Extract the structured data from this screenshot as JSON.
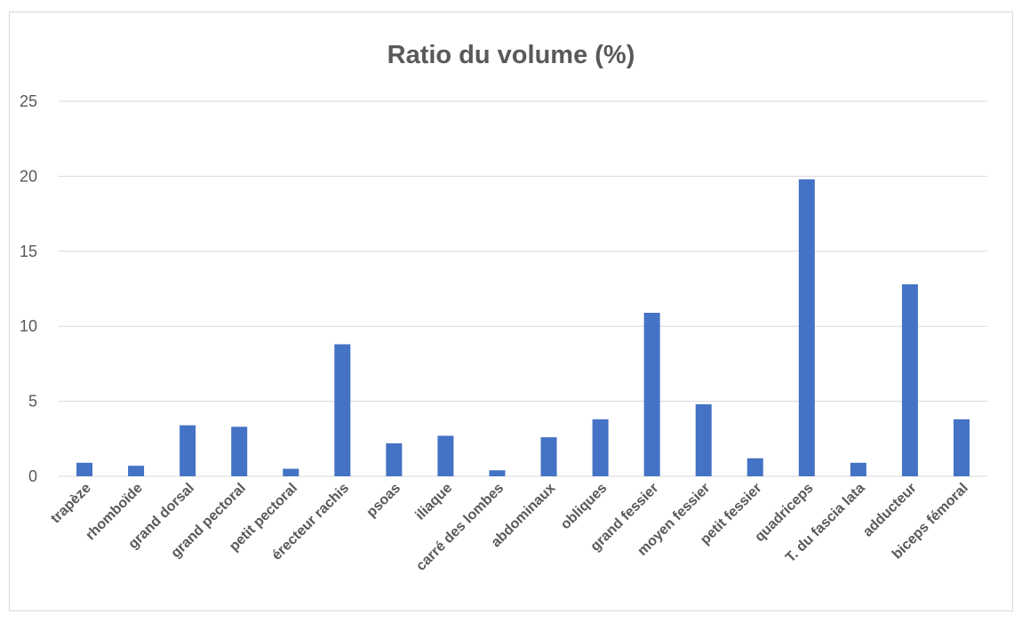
{
  "chart_data": {
    "type": "bar",
    "title": "Ratio du volume (%)",
    "xlabel": "",
    "ylabel": "",
    "ylim": [
      0,
      25
    ],
    "yticks": [
      0,
      5,
      10,
      15,
      20,
      25
    ],
    "grid": true,
    "legend": "none",
    "bar_color": "#4472C4",
    "categories": [
      "trapèze",
      "rhomboïde",
      "grand dorsal",
      "grand pectoral",
      "petit pectoral",
      "érecteur rachis",
      "psoas",
      "iliaque",
      "carré des lombes",
      "abdominaux",
      "obliques",
      "grand fessier",
      "moyen fessier",
      "petit fessier",
      "quadriceps",
      "T. du fascia lata",
      "adducteur",
      "biceps fémoral"
    ],
    "values": [
      0.9,
      0.7,
      3.4,
      3.3,
      0.5,
      8.8,
      2.2,
      2.7,
      0.4,
      2.6,
      3.8,
      10.9,
      4.8,
      1.2,
      19.8,
      0.9,
      12.8,
      3.8
    ]
  }
}
